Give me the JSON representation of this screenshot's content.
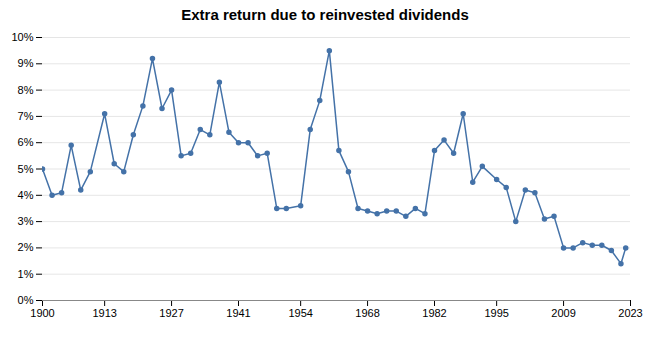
{
  "chart_data": {
    "type": "line",
    "title": "Extra return due to reinvested dividends",
    "x": [
      1900,
      1902,
      1904,
      1906,
      1908,
      1910,
      1913,
      1915,
      1917,
      1919,
      1921,
      1923,
      1925,
      1927,
      1929,
      1931,
      1933,
      1935,
      1937,
      1939,
      1941,
      1943,
      1945,
      1947,
      1949,
      1951,
      1954,
      1956,
      1958,
      1960,
      1962,
      1964,
      1966,
      1968,
      1970,
      1972,
      1974,
      1976,
      1978,
      1980,
      1982,
      1984,
      1986,
      1988,
      1990,
      1992,
      1995,
      1997,
      1999,
      2001,
      2003,
      2005,
      2007,
      2009,
      2011,
      2013,
      2015,
      2017,
      2019,
      2021,
      2022
    ],
    "values": [
      0.05,
      0.04,
      0.041,
      0.059,
      0.042,
      0.049,
      0.071,
      0.052,
      0.049,
      0.063,
      0.074,
      0.092,
      0.073,
      0.08,
      0.055,
      0.056,
      0.065,
      0.063,
      0.083,
      0.064,
      0.06,
      0.06,
      0.055,
      0.056,
      0.035,
      0.035,
      0.036,
      0.065,
      0.076,
      0.095,
      0.057,
      0.049,
      0.035,
      0.034,
      0.033,
      0.034,
      0.034,
      0.032,
      0.035,
      0.033,
      0.057,
      0.061,
      0.056,
      0.071,
      0.045,
      0.051,
      0.046,
      0.043,
      0.03,
      0.042,
      0.041,
      0.031,
      0.032,
      0.02,
      0.02,
      0.022,
      0.021,
      0.021,
      0.019,
      0.014,
      0.02
    ],
    "color": "#4472a8",
    "marker": "circle",
    "xlim": [
      1900,
      2023
    ],
    "xticks": [
      1900,
      1913,
      1927,
      1941,
      1954,
      1968,
      1982,
      1995,
      2009,
      2023
    ],
    "ylim": [
      0,
      0.1
    ],
    "yticks": [
      {
        "value": 0,
        "label": "0%"
      },
      {
        "value": 0.01,
        "label": "1%"
      },
      {
        "value": 0.02,
        "label": "2%"
      },
      {
        "value": 0.03,
        "label": "3%"
      },
      {
        "value": 0.04,
        "label": "4%"
      },
      {
        "value": 0.05,
        "label": "5%"
      },
      {
        "value": 0.06,
        "label": "6%"
      },
      {
        "value": 0.07,
        "label": "7%"
      },
      {
        "value": 0.08,
        "label": "8%"
      },
      {
        "value": 0.09,
        "label": "9%"
      },
      {
        "value": 0.1,
        "label": "10%"
      }
    ],
    "grid": true
  }
}
